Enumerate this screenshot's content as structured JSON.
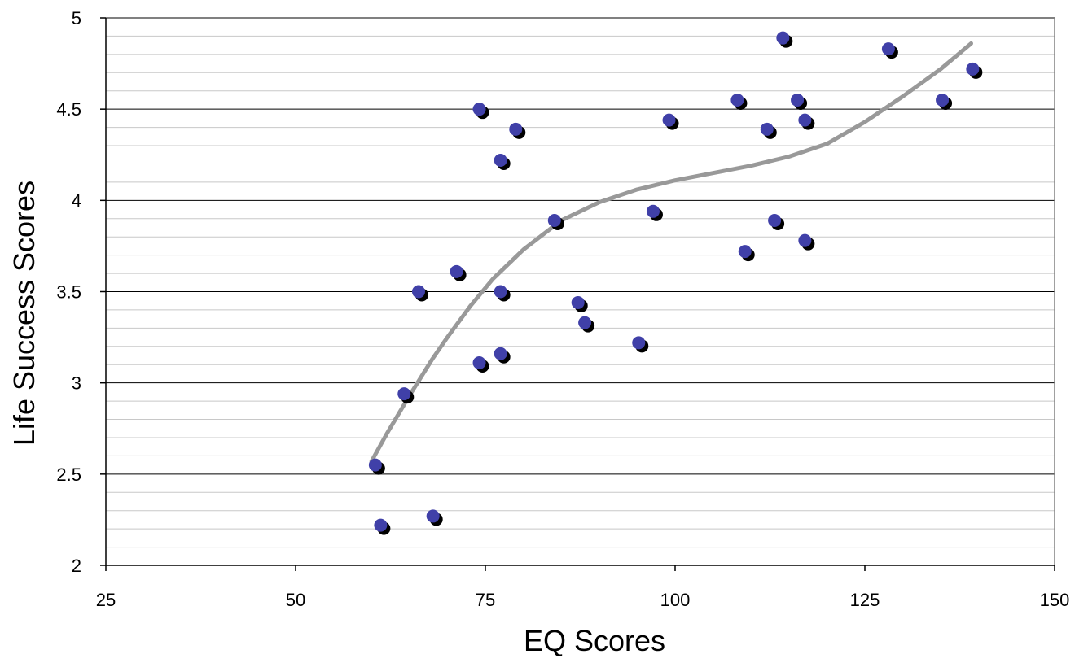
{
  "chart_data": {
    "type": "scatter",
    "title": "",
    "xlabel": "EQ Scores",
    "ylabel": "Life Success Scores",
    "xlim": [
      25,
      150
    ],
    "ylim": [
      2,
      5
    ],
    "x_ticks": [
      "25",
      "50",
      "75",
      "100",
      "125",
      "150"
    ],
    "y_ticks": [
      "2",
      "2.5",
      "3",
      "3.5",
      "4",
      "4.5",
      "5"
    ],
    "grid": true,
    "legend": "none",
    "colors": {
      "point": "#4040a8",
      "point_shadow": "#000000",
      "trendline": "#999999",
      "major_grid": "#000000",
      "minor_grid": "#c8c8c8",
      "plot_border": "#808080"
    },
    "points": [
      {
        "x": 60.5,
        "y": 2.55
      },
      {
        "x": 61.2,
        "y": 2.22
      },
      {
        "x": 64.3,
        "y": 2.94
      },
      {
        "x": 66.2,
        "y": 3.5
      },
      {
        "x": 68.1,
        "y": 2.27
      },
      {
        "x": 71.2,
        "y": 3.61
      },
      {
        "x": 74.2,
        "y": 4.5
      },
      {
        "x": 74.2,
        "y": 3.11
      },
      {
        "x": 77.0,
        "y": 4.22
      },
      {
        "x": 77.0,
        "y": 3.5
      },
      {
        "x": 77.0,
        "y": 3.16
      },
      {
        "x": 79.0,
        "y": 4.39
      },
      {
        "x": 84.1,
        "y": 3.89
      },
      {
        "x": 87.2,
        "y": 3.44
      },
      {
        "x": 88.1,
        "y": 3.33
      },
      {
        "x": 95.2,
        "y": 3.22
      },
      {
        "x": 97.1,
        "y": 3.94
      },
      {
        "x": 99.2,
        "y": 4.44
      },
      {
        "x": 108.2,
        "y": 4.55
      },
      {
        "x": 109.2,
        "y": 3.72
      },
      {
        "x": 112.1,
        "y": 4.39
      },
      {
        "x": 113.1,
        "y": 3.89
      },
      {
        "x": 114.2,
        "y": 4.89
      },
      {
        "x": 116.1,
        "y": 4.55
      },
      {
        "x": 117.1,
        "y": 4.44
      },
      {
        "x": 117.1,
        "y": 3.78
      },
      {
        "x": 128.1,
        "y": 4.83
      },
      {
        "x": 135.2,
        "y": 4.55
      },
      {
        "x": 139.2,
        "y": 4.72
      }
    ],
    "trendline": {
      "type": "polynomial",
      "x": [
        60,
        62,
        65,
        68,
        70,
        73,
        76,
        80,
        85,
        90,
        95,
        100,
        105,
        110,
        115,
        120,
        125,
        130,
        135,
        139
      ],
      "y": [
        2.57,
        2.72,
        2.93,
        3.13,
        3.25,
        3.42,
        3.57,
        3.73,
        3.89,
        3.99,
        4.06,
        4.11,
        4.15,
        4.19,
        4.24,
        4.31,
        4.43,
        4.57,
        4.72,
        4.86
      ]
    }
  }
}
